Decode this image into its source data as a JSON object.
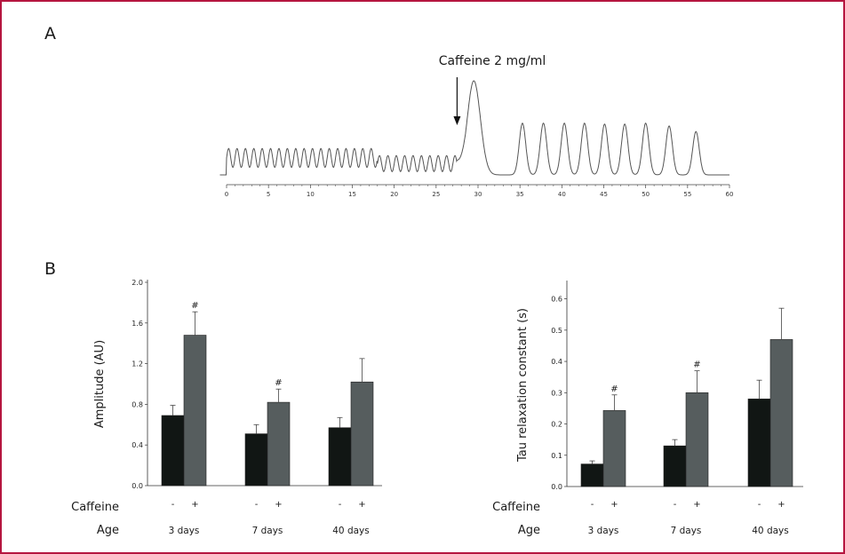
{
  "figure": {
    "panel_a_letter": "A",
    "panel_b_letter": "B"
  },
  "colors": {
    "frame": "#b5163f",
    "bar_control": "#111614",
    "bar_caffeine": "#565d5e",
    "trace": "#555555"
  },
  "chart_data": [
    {
      "type": "line",
      "panel": "A",
      "title": "",
      "annotation": "Caffeine 2 mg/ml",
      "annotation_x": 27.5,
      "xlabel": "",
      "ylabel": "",
      "xlim": [
        0,
        60
      ],
      "x_ticks": [
        0,
        5,
        10,
        15,
        20,
        25,
        30,
        35,
        40,
        45,
        50,
        55,
        60
      ],
      "grid": false,
      "series": [
        {
          "segments": [
            {
              "x_start": 0,
              "x_end": 18,
              "baseline": 0.18,
              "amplitude": 0.1,
              "period": 1.0
            },
            {
              "x_start": 18,
              "x_end": 27.5,
              "baseline": 0.12,
              "amplitude": 0.085,
              "period": 1.0
            }
          ],
          "peak": {
            "x": 29.5,
            "y": 1.0,
            "width": 1.1
          },
          "post_peak_baseline": 0.0,
          "post_peaks_x": [
            35.3,
            37.8,
            40.3,
            42.7,
            45.1,
            47.5,
            50.0,
            52.8,
            56.0
          ],
          "post_peaks_y": [
            0.55,
            0.55,
            0.55,
            0.55,
            0.54,
            0.54,
            0.55,
            0.52,
            0.46
          ]
        }
      ]
    },
    {
      "type": "bar",
      "panel": "B-left",
      "title": "",
      "xlabel": "",
      "ylabel": "Amplitude (AU)",
      "ylim": [
        0,
        2.0
      ],
      "y_ticks": [
        "0.0",
        "0.4",
        "0.8",
        "1.2",
        "1.6",
        "2.0"
      ],
      "row_labels": {
        "caffeine": "Caffeine",
        "age": "Age"
      },
      "categories": [
        "3 days",
        "7 days",
        "40 days"
      ],
      "caffeine_signs": [
        "-",
        "+"
      ],
      "series": [
        {
          "values": [
            0.69,
            0.51,
            0.57
          ],
          "errors": [
            0.1,
            0.09,
            0.1
          ]
        },
        {
          "values": [
            1.48,
            0.82,
            1.02
          ],
          "errors": [
            0.23,
            0.13,
            0.23
          ],
          "significance": [
            "#",
            "#",
            ""
          ]
        }
      ]
    },
    {
      "type": "bar",
      "panel": "B-right",
      "title": "",
      "xlabel": "",
      "ylabel": "Tau relaxation constant (s)",
      "ylim": [
        0,
        0.65
      ],
      "y_ticks": [
        "0.0",
        "0.1",
        "0.2",
        "0.3",
        "0.4",
        "0.5",
        "0.6"
      ],
      "row_labels": {
        "caffeine": "Caffeine",
        "age": "Age"
      },
      "categories": [
        "3 days",
        "7 days",
        "40 days"
      ],
      "caffeine_signs": [
        "-",
        "+"
      ],
      "series": [
        {
          "values": [
            0.072,
            0.13,
            0.28
          ],
          "errors": [
            0.01,
            0.02,
            0.06
          ]
        },
        {
          "values": [
            0.243,
            0.3,
            0.47
          ],
          "errors": [
            0.05,
            0.07,
            0.1
          ],
          "significance": [
            "#",
            "#",
            ""
          ]
        }
      ]
    }
  ]
}
